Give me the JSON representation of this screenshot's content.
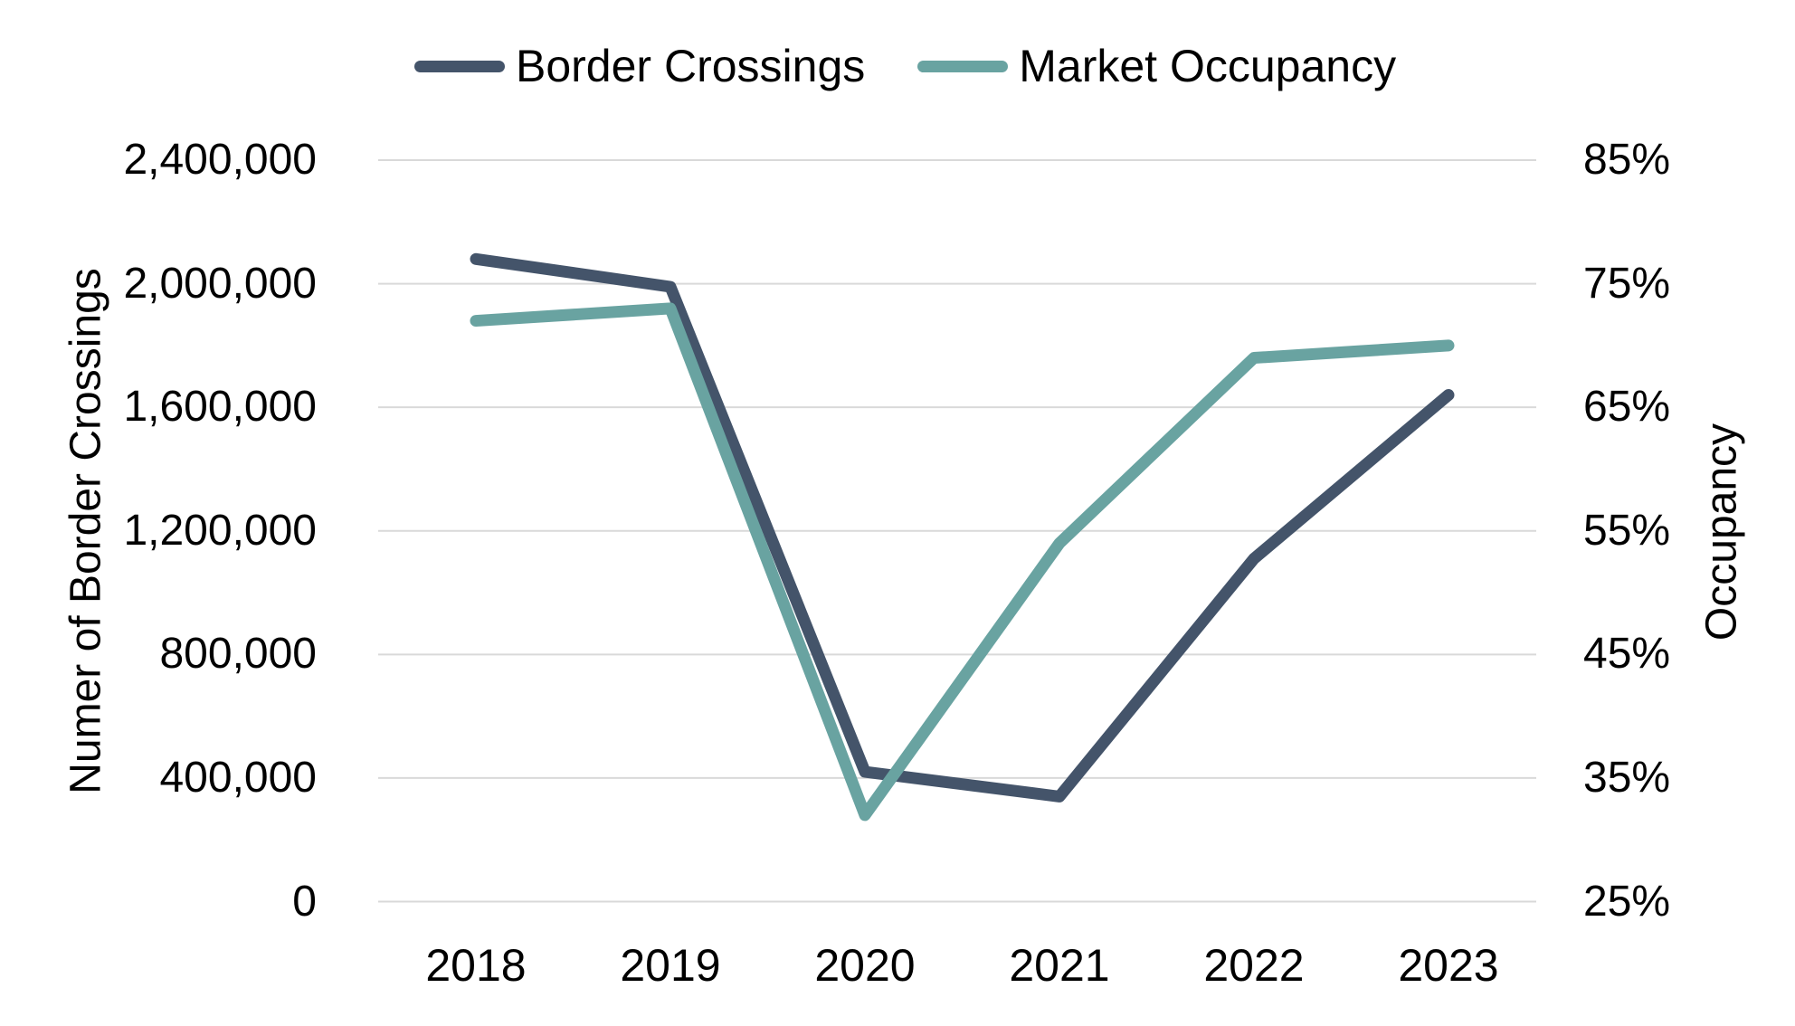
{
  "chart_data": {
    "type": "line",
    "categories": [
      "2018",
      "2019",
      "2020",
      "2021",
      "2022",
      "2023"
    ],
    "series": [
      {
        "name": "Border Crossings",
        "axis": "left",
        "color": "#44546A",
        "values": [
          2080000,
          1990000,
          420000,
          340000,
          1110000,
          1640000
        ]
      },
      {
        "name": "Market Occupancy",
        "axis": "right",
        "color": "#69A3A1",
        "values": [
          72,
          73,
          32,
          54,
          69,
          70
        ]
      }
    ],
    "left_axis": {
      "label": "Numer of Border Crossings",
      "min": 0,
      "max": 2400000,
      "tick_values": [
        2400000,
        2000000,
        1600000,
        1200000,
        800000,
        400000,
        0
      ],
      "tick_labels": [
        "2,400,000",
        "2,000,000",
        "1,600,000",
        "1,200,000",
        "800,000",
        "400,000",
        "0"
      ]
    },
    "right_axis": {
      "label": "Occupancy",
      "min": 25,
      "max": 85,
      "unit": "%",
      "tick_values": [
        85,
        75,
        65,
        55,
        45,
        35,
        25
      ],
      "tick_labels": [
        "85%",
        "75%",
        "65%",
        "55%",
        "45%",
        "35%",
        "25%"
      ]
    },
    "legend": {
      "position": "top"
    },
    "grid": true,
    "gridline_color": "#D9D9D9",
    "background": "#FFFFFF",
    "line_width": 13
  }
}
